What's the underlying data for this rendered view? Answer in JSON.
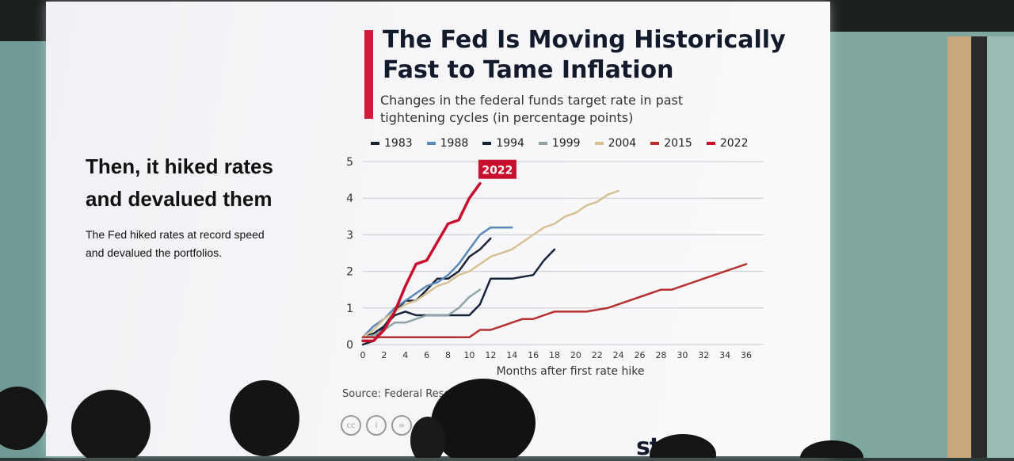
{
  "slide": {
    "left_heading": "Then, it hiked rates and devalued them",
    "left_text": "The Fed hiked rates at record speed and devalued the portfolios.",
    "source": "Source: Federal Rese",
    "brand": "sta"
  },
  "chart_data": {
    "type": "line",
    "title": "The Fed Is Moving Historically Fast to Tame Inflation",
    "subtitle": "Changes in the federal funds target rate in past tightening cycles (in percentage points)",
    "xlabel": "Months after first rate hike",
    "ylabel": "",
    "xlim": [
      0,
      36
    ],
    "ylim": [
      0,
      5
    ],
    "x_ticks": [
      "0",
      "2",
      "4",
      "6",
      "8",
      "10",
      "12",
      "14",
      "16",
      "18",
      "20",
      "22",
      "24",
      "26",
      "28",
      "30",
      "32",
      "34",
      "36"
    ],
    "y_ticks": [
      "0",
      "1",
      "2",
      "3",
      "4",
      "5"
    ],
    "grid": true,
    "legend_position": "top",
    "annotation": {
      "text": "2022",
      "series": "2022"
    },
    "series": [
      {
        "name": "1983",
        "color": "#1a2334",
        "points": [
          [
            0,
            0.2
          ],
          [
            1,
            0.3
          ],
          [
            2,
            0.5
          ],
          [
            3,
            0.9
          ],
          [
            4,
            1.2
          ],
          [
            5,
            1.2
          ],
          [
            6,
            1.5
          ],
          [
            7,
            1.8
          ],
          [
            8,
            1.8
          ],
          [
            9,
            2.0
          ],
          [
            10,
            2.4
          ],
          [
            11,
            2.6
          ],
          [
            12,
            2.9
          ]
        ]
      },
      {
        "name": "1988",
        "color": "#5b89b8",
        "points": [
          [
            0,
            0.2
          ],
          [
            1,
            0.5
          ],
          [
            2,
            0.7
          ],
          [
            3,
            1.0
          ],
          [
            4,
            1.2
          ],
          [
            5,
            1.4
          ],
          [
            6,
            1.6
          ],
          [
            7,
            1.7
          ],
          [
            8,
            1.9
          ],
          [
            9,
            2.2
          ],
          [
            10,
            2.6
          ],
          [
            11,
            3.0
          ],
          [
            12,
            3.2
          ],
          [
            14,
            3.2
          ]
        ]
      },
      {
        "name": "1994",
        "color": "#14233a",
        "points": [
          [
            0,
            0.0
          ],
          [
            1,
            0.1
          ],
          [
            2,
            0.5
          ],
          [
            3,
            0.8
          ],
          [
            4,
            0.9
          ],
          [
            5,
            0.8
          ],
          [
            6,
            0.8
          ],
          [
            10,
            0.8
          ],
          [
            11,
            1.1
          ],
          [
            12,
            1.8
          ],
          [
            14,
            1.8
          ],
          [
            16,
            1.9
          ],
          [
            17,
            2.3
          ],
          [
            18,
            2.6
          ]
        ]
      },
      {
        "name": "1999",
        "color": "#8fa4a7",
        "points": [
          [
            0,
            0.2
          ],
          [
            1,
            0.25
          ],
          [
            2,
            0.4
          ],
          [
            3,
            0.6
          ],
          [
            4,
            0.6
          ],
          [
            5,
            0.7
          ],
          [
            6,
            0.8
          ],
          [
            8,
            0.8
          ],
          [
            9,
            1.0
          ],
          [
            10,
            1.3
          ],
          [
            11,
            1.5
          ]
        ]
      },
      {
        "name": "2004",
        "color": "#d8c095",
        "points": [
          [
            0,
            0.2
          ],
          [
            1,
            0.4
          ],
          [
            2,
            0.7
          ],
          [
            3,
            0.9
          ],
          [
            4,
            1.1
          ],
          [
            5,
            1.2
          ],
          [
            6,
            1.4
          ],
          [
            7,
            1.6
          ],
          [
            8,
            1.7
          ],
          [
            9,
            1.9
          ],
          [
            10,
            2.0
          ],
          [
            11,
            2.2
          ],
          [
            12,
            2.4
          ],
          [
            13,
            2.5
          ],
          [
            14,
            2.6
          ],
          [
            15,
            2.8
          ],
          [
            16,
            3.0
          ],
          [
            17,
            3.2
          ],
          [
            18,
            3.3
          ],
          [
            19,
            3.5
          ],
          [
            20,
            3.6
          ],
          [
            21,
            3.8
          ],
          [
            22,
            3.9
          ],
          [
            23,
            4.1
          ],
          [
            24,
            4.2
          ]
        ]
      },
      {
        "name": "2015",
        "color": "#b5302e",
        "points": [
          [
            0,
            0.2
          ],
          [
            4,
            0.2
          ],
          [
            8,
            0.2
          ],
          [
            10,
            0.2
          ],
          [
            11,
            0.4
          ],
          [
            12,
            0.4
          ],
          [
            13,
            0.5
          ],
          [
            14,
            0.6
          ],
          [
            15,
            0.7
          ],
          [
            16,
            0.7
          ],
          [
            17,
            0.8
          ],
          [
            18,
            0.9
          ],
          [
            21,
            0.9
          ],
          [
            23,
            1.0
          ],
          [
            24,
            1.1
          ],
          [
            25,
            1.2
          ],
          [
            26,
            1.3
          ],
          [
            27,
            1.4
          ],
          [
            28,
            1.5
          ],
          [
            29,
            1.5
          ],
          [
            30,
            1.6
          ],
          [
            31,
            1.7
          ],
          [
            32,
            1.8
          ],
          [
            33,
            1.9
          ],
          [
            34,
            2.0
          ],
          [
            35,
            2.1
          ],
          [
            36,
            2.2
          ]
        ]
      },
      {
        "name": "2022",
        "color": "#c8102e",
        "points": [
          [
            0,
            0.1
          ],
          [
            1,
            0.1
          ],
          [
            2,
            0.4
          ],
          [
            3,
            0.9
          ],
          [
            4,
            1.6
          ],
          [
            5,
            2.2
          ],
          [
            6,
            2.3
          ],
          [
            7,
            2.8
          ],
          [
            8,
            3.3
          ],
          [
            9,
            3.4
          ],
          [
            10,
            4.0
          ],
          [
            11,
            4.4
          ]
        ]
      }
    ]
  }
}
